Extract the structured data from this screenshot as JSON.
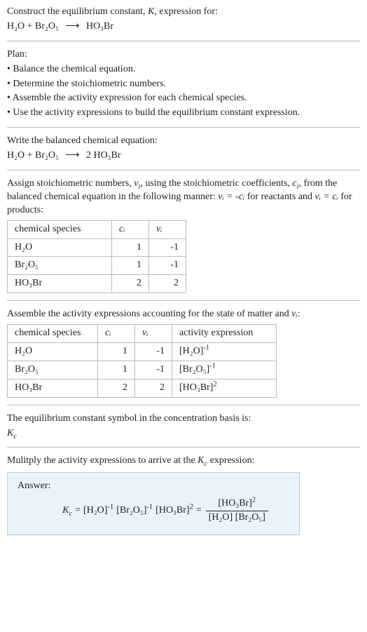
{
  "intro": {
    "line1_prefix": "Construct the equilibrium constant, ",
    "K": "K",
    "line1_suffix": ", expression for:",
    "reaction_lhs": "H₂O + Br₂O₅",
    "arrow": "⟶",
    "reaction_rhs": "HO₃Br"
  },
  "plan": {
    "heading": "Plan:",
    "items": [
      "• Balance the chemical equation.",
      "• Determine the stoichiometric numbers.",
      "• Assemble the activity expression for each chemical species.",
      "• Use the activity expressions to build the equilibrium constant expression."
    ]
  },
  "balanced": {
    "heading": "Write the balanced chemical equation:",
    "lhs": "H₂O + Br₂O₅",
    "arrow": "⟶",
    "rhs": "2 HO₃Br"
  },
  "stoich": {
    "text_before": "Assign stoichiometric numbers, ",
    "nu": "ν",
    "sub_i": "i",
    "text_mid1": ", using the stoichiometric coefficients, ",
    "c": "c",
    "text_mid2": ", from the balanced chemical equation in the following manner: ",
    "eq1": "νᵢ = -cᵢ",
    "text_mid3": " for reactants and ",
    "eq2": "νᵢ = cᵢ",
    "text_mid4": " for products:",
    "table": {
      "headers": [
        "chemical species",
        "cᵢ",
        "νᵢ"
      ],
      "rows": [
        [
          "H₂O",
          "1",
          "-1"
        ],
        [
          "Br₂O₅",
          "1",
          "-1"
        ],
        [
          "HO₃Br",
          "2",
          "2"
        ]
      ],
      "col_widths": [
        "128px",
        "32px",
        "32px"
      ]
    }
  },
  "activity": {
    "heading_prefix": "Assemble the activity expressions accounting for the state of matter and ",
    "nu_i": "νᵢ",
    "heading_suffix": ":",
    "table": {
      "headers": [
        "chemical species",
        "cᵢ",
        "νᵢ",
        "activity expression"
      ],
      "rows": [
        {
          "species": "H₂O",
          "c": "1",
          "nu": "-1",
          "expr_base": "[H₂O]",
          "expr_exp": "-1"
        },
        {
          "species": "Br₂O₅",
          "c": "1",
          "nu": "-1",
          "expr_base": "[Br₂O₅]",
          "expr_exp": "-1"
        },
        {
          "species": "HO₃Br",
          "c": "2",
          "nu": "2",
          "expr_base": "[HO₃Br]",
          "expr_exp": "2"
        }
      ],
      "col_widths": [
        "108px",
        "32px",
        "32px",
        "128px"
      ]
    }
  },
  "symbol": {
    "line": "The equilibrium constant symbol in the concentration basis is:",
    "Kc_K": "K",
    "Kc_c": "c"
  },
  "multiply": {
    "line_prefix": "Mulitply the activity expressions to arrive at the ",
    "Kc_K": "K",
    "Kc_c": "c",
    "line_suffix": " expression:"
  },
  "answer": {
    "label": "Answer:",
    "Kc_K": "K",
    "Kc_c": "c",
    "eq": " = ",
    "term1_base": "[H₂O]",
    "term1_exp": "-1",
    "term2_base": "[Br₂O₅]",
    "term2_exp": "-1",
    "term3_base": "[HO₃Br]",
    "term3_exp": "2",
    "frac_num_base": "[HO₃Br]",
    "frac_num_exp": "2",
    "frac_den": "[H₂O] [Br₂O₅]"
  },
  "style": {
    "border_color": "#bbb",
    "answer_bg": "#eaf3fb",
    "answer_border": "#b8cde0"
  }
}
